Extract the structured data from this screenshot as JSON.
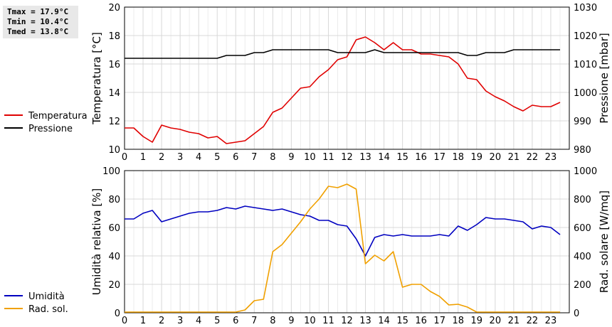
{
  "stats": {
    "tmax": "Tmax = 17.9°C",
    "tmin": "Tmin = 10.4°C",
    "tmed": "Tmed = 13.8°C"
  },
  "chart_data": [
    {
      "type": "line",
      "xlim": [
        0,
        24
      ],
      "x_ticks": [
        "0",
        "1",
        "2",
        "3",
        "4",
        "5",
        "6",
        "7",
        "8",
        "9",
        "10",
        "11",
        "12",
        "13",
        "14",
        "15",
        "16",
        "17",
        "18",
        "19",
        "20",
        "21",
        "22",
        "23"
      ],
      "ylabel_left": "Temperatura [°C]",
      "ylabel_right": "Pressione [mbar]",
      "ylim_left": [
        10,
        20
      ],
      "ylim_right": [
        980,
        1030
      ],
      "y_ticks_left": [
        "10",
        "12",
        "14",
        "16",
        "18",
        "20"
      ],
      "y_ticks_right": [
        "980",
        "990",
        "1000",
        "1010",
        "1020",
        "1030"
      ],
      "grid": true,
      "legend_position": "left",
      "series": [
        {
          "name": "Temperatura",
          "axis": "left",
          "color": "#e00000",
          "x": [
            0,
            0.5,
            1,
            1.5,
            2,
            2.5,
            3,
            3.5,
            4,
            4.5,
            5,
            5.5,
            6,
            6.5,
            7,
            7.5,
            8,
            8.5,
            9,
            9.5,
            10,
            10.5,
            11,
            11.5,
            12,
            12.5,
            13,
            13.5,
            14,
            14.5,
            15,
            15.5,
            16,
            16.5,
            17,
            17.5,
            18,
            18.5,
            19,
            19.5,
            20,
            20.5,
            21,
            21.5,
            22,
            22.5,
            23,
            23.5
          ],
          "values": [
            11.5,
            11.5,
            10.9,
            10.5,
            11.7,
            11.5,
            11.4,
            11.2,
            11.1,
            10.8,
            10.9,
            10.4,
            10.5,
            10.6,
            11.1,
            11.6,
            12.6,
            12.9,
            13.6,
            14.3,
            14.4,
            15.1,
            15.6,
            16.3,
            16.5,
            17.7,
            17.9,
            17.5,
            17.0,
            17.5,
            17.0,
            17.0,
            16.7,
            16.7,
            16.6,
            16.5,
            16.0,
            15.0,
            14.9,
            14.1,
            13.7,
            13.4,
            13.0,
            12.7,
            13.1,
            13.0,
            13.0,
            13.3
          ]
        },
        {
          "name": "Pressione",
          "axis": "right",
          "color": "#000000",
          "x": [
            0,
            0.5,
            1,
            1.5,
            2,
            2.5,
            3,
            3.5,
            4,
            4.5,
            5,
            5.5,
            6,
            6.5,
            7,
            7.5,
            8,
            8.5,
            9,
            9.5,
            10,
            10.5,
            11,
            11.5,
            12,
            12.5,
            13,
            13.5,
            14,
            14.5,
            15,
            15.5,
            16,
            16.5,
            17,
            17.5,
            18,
            18.5,
            19,
            19.5,
            20,
            20.5,
            21,
            21.5,
            22,
            22.5,
            23,
            23.5
          ],
          "values": [
            1012,
            1012,
            1012,
            1012,
            1012,
            1012,
            1012,
            1012,
            1012,
            1012,
            1012,
            1013,
            1013,
            1013,
            1014,
            1014,
            1015,
            1015,
            1015,
            1015,
            1015,
            1015,
            1015,
            1014,
            1014,
            1014,
            1014,
            1015,
            1014,
            1014,
            1014,
            1014,
            1014,
            1014,
            1014,
            1014,
            1014,
            1013,
            1013,
            1014,
            1014,
            1014,
            1015,
            1015,
            1015,
            1015,
            1015,
            1015
          ]
        }
      ]
    },
    {
      "type": "line",
      "xlim": [
        0,
        24
      ],
      "x_ticks": [
        "0",
        "1",
        "2",
        "3",
        "4",
        "5",
        "6",
        "7",
        "8",
        "9",
        "10",
        "11",
        "12",
        "13",
        "14",
        "15",
        "16",
        "17",
        "18",
        "19",
        "20",
        "21",
        "22",
        "23"
      ],
      "ylabel_left": "Umidità relativa [%]",
      "ylabel_right": "Rad. solare [W/mq]",
      "ylim_left": [
        0,
        100
      ],
      "ylim_right": [
        0,
        1000
      ],
      "y_ticks_left": [
        "0",
        "20",
        "40",
        "60",
        "80",
        "100"
      ],
      "y_ticks_right": [
        "0",
        "200",
        "400",
        "600",
        "800",
        "1000"
      ],
      "grid": true,
      "legend_position": "left",
      "series": [
        {
          "name": "Umidità",
          "axis": "left",
          "color": "#0000c0",
          "x": [
            0,
            0.5,
            1,
            1.5,
            2,
            2.5,
            3,
            3.5,
            4,
            4.5,
            5,
            5.5,
            6,
            6.5,
            7,
            7.5,
            8,
            8.5,
            9,
            9.5,
            10,
            10.5,
            11,
            11.5,
            12,
            12.5,
            13,
            13.5,
            14,
            14.5,
            15,
            15.5,
            16,
            16.5,
            17,
            17.5,
            18,
            18.5,
            19,
            19.5,
            20,
            20.5,
            21,
            21.5,
            22,
            22.5,
            23,
            23.5
          ],
          "values": [
            66,
            66,
            70,
            72,
            64,
            66,
            68,
            70,
            71,
            71,
            72,
            74,
            73,
            75,
            74,
            73,
            72,
            73,
            71,
            69,
            68,
            65,
            65,
            62,
            61,
            52,
            40,
            53,
            55,
            54,
            55,
            54,
            54,
            54,
            55,
            54,
            61,
            58,
            62,
            67,
            66,
            66,
            65,
            64,
            59,
            61,
            60,
            55
          ]
        },
        {
          "name": "Rad. sol.",
          "axis": "right",
          "color": "#f0a000",
          "x": [
            0,
            0.5,
            1,
            1.5,
            2,
            2.5,
            3,
            3.5,
            4,
            4.5,
            5,
            5.5,
            6,
            6.5,
            7,
            7.5,
            8,
            8.5,
            9,
            9.5,
            10,
            10.5,
            11,
            11.5,
            12,
            12.5,
            13,
            13.5,
            14,
            14.5,
            15,
            15.5,
            16,
            16.5,
            17,
            17.5,
            18,
            18.5,
            19,
            19.5,
            20,
            20.5,
            21,
            21.5,
            22,
            22.5,
            23,
            23.5
          ],
          "values": [
            5,
            5,
            5,
            5,
            5,
            5,
            5,
            5,
            5,
            5,
            5,
            5,
            5,
            20,
            85,
            95,
            430,
            480,
            560,
            640,
            730,
            800,
            890,
            880,
            905,
            870,
            345,
            405,
            365,
            430,
            180,
            200,
            200,
            150,
            115,
            55,
            60,
            40,
            5,
            5,
            5,
            5,
            5,
            5,
            5,
            5,
            5,
            5
          ]
        }
      ]
    }
  ]
}
